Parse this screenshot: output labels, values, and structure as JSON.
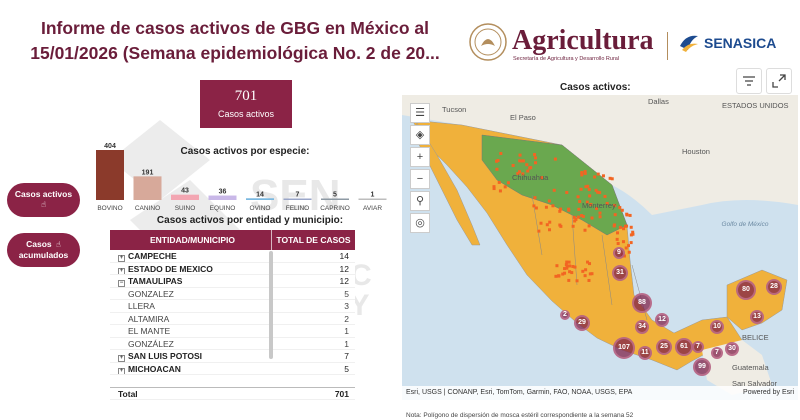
{
  "header": {
    "title_line1": "Informe de casos activos de GBG en México al",
    "title_line2": "15/01/2026 (Semana epidemiológica No. 2 de 20...",
    "logo_agricultura": "Agricultura",
    "logo_agricultura_sub": "Secretaría de Agricultura y Desarrollo Rural",
    "logo_senasica": "SENASICA"
  },
  "colors": {
    "brand": "#8b2346",
    "title": "#6a1d3a",
    "state_green": "#6aa84f",
    "state_orange": "#f0b13b",
    "outbreak": "#f26522"
  },
  "summary": {
    "total_value": "701",
    "total_label": "Casos activos"
  },
  "species_chart": {
    "title": "Casos activos por especie:",
    "chart_data": {
      "type": "bar",
      "categories": [
        "BOVINO",
        "CANINO",
        "SUINO",
        "EQUINO",
        "OVINO",
        "FELINO",
        "CAPRINO",
        "AVIAR"
      ],
      "values": [
        404,
        191,
        43,
        36,
        14,
        7,
        5,
        1
      ],
      "colors": [
        "#8b3a2b",
        "#d7a99a",
        "#f3a6b2",
        "#c9b8e8",
        "#7ab8e0",
        "#9aa6c8",
        "#8e9aa4",
        "#bdbdbd"
      ]
    }
  },
  "side_buttons": [
    {
      "label_l1": "Casos activos",
      "label_l2": ""
    },
    {
      "label_l1": "Casos",
      "label_l2": "acumulados"
    }
  ],
  "table": {
    "title": "Casos activos por entidad y municipio:",
    "col_entity": "ENTIDAD/MUNICIPIO",
    "col_total": "TOTAL DE CASOS",
    "rows": [
      {
        "type": "state",
        "name": "CAMPECHE",
        "value": "14",
        "expand": "+"
      },
      {
        "type": "state",
        "name": "ESTADO DE MEXICO",
        "value": "12",
        "expand": "+"
      },
      {
        "type": "state",
        "name": "TAMAULIPAS",
        "value": "12",
        "expand": "−"
      },
      {
        "type": "muni",
        "name": "GONZALEZ",
        "value": "5"
      },
      {
        "type": "muni",
        "name": "LLERA",
        "value": "3"
      },
      {
        "type": "muni",
        "name": "ALTAMIRA",
        "value": "2"
      },
      {
        "type": "muni",
        "name": "EL MANTE",
        "value": "1"
      },
      {
        "type": "muni",
        "name": "GONZÁLEZ",
        "value": "1"
      },
      {
        "type": "state",
        "name": "SAN LUIS POTOSI",
        "value": "7",
        "expand": "+"
      },
      {
        "type": "state",
        "name": "MICHOACAN",
        "value": "5",
        "expand": "+"
      }
    ],
    "total_label": "Total",
    "total_value": "701"
  },
  "map": {
    "title": "Casos activos:",
    "labels": {
      "tucson": "Tucson",
      "el_paso": "El Paso",
      "dallas": "Dallas",
      "houston": "Houston",
      "monterrey": "Monterrey",
      "chihuahua": "Chihuahua",
      "golfo": "Golfo de México",
      "belice": "BELICE",
      "guatemala": "Guatemala",
      "san_salvador": "San Salvador",
      "usa": "ESTADOS UNIDOS"
    },
    "clusters": [
      "9",
      "31",
      "88",
      "12",
      "29",
      "2",
      "34",
      "107",
      "11",
      "25",
      "61",
      "7",
      "10",
      "80",
      "28",
      "13",
      "99",
      "30",
      "7"
    ],
    "attribution": "Esri, USGS | CONANP, Esri, TomTom, Garmin, FAO, NOAA, USGS, EPA",
    "powered": "Powered by Esri"
  },
  "note": "Nota: Polígono de dispersión de mosca estéril correspondiente a la semana 52"
}
